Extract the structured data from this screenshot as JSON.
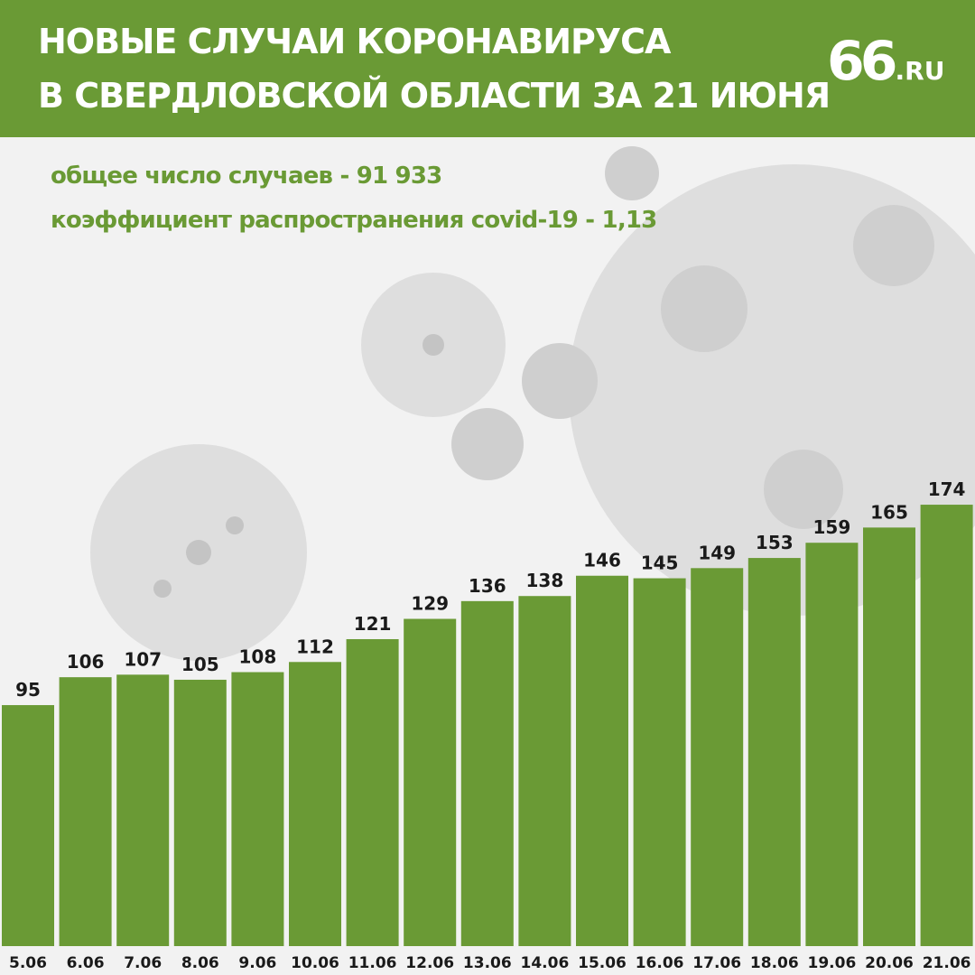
{
  "header": {
    "title_line1": "НОВЫЕ СЛУЧАИ КОРОНАВИРУСА",
    "title_line2": "В СВЕРДЛОВСКОЙ ОБЛАСТИ ЗА 21 ИЮНЯ",
    "logo_number": "66",
    "logo_domain": ".RU"
  },
  "stats": {
    "total_cases": "общее число случаев - 91 933",
    "spread_coefficient": "коэффициент распространения covid-19 - 1,13"
  },
  "colors": {
    "accent": "#6a9a35",
    "text_dark": "#1a1a1a",
    "background": "#f2f2f2"
  },
  "chart_data": {
    "type": "bar",
    "categories": [
      "5.06",
      "6.06",
      "7.06",
      "8.06",
      "9.06",
      "10.06",
      "11.06",
      "12.06",
      "13.06",
      "14.06",
      "15.06",
      "16.06",
      "17.06",
      "18.06",
      "19.06",
      "20.06",
      "21.06"
    ],
    "values": [
      95,
      106,
      107,
      105,
      108,
      112,
      121,
      129,
      136,
      138,
      146,
      145,
      149,
      153,
      159,
      165,
      174
    ],
    "data_labels": true,
    "grid": false,
    "legend": "none",
    "ylim": [
      0,
      180
    ]
  }
}
